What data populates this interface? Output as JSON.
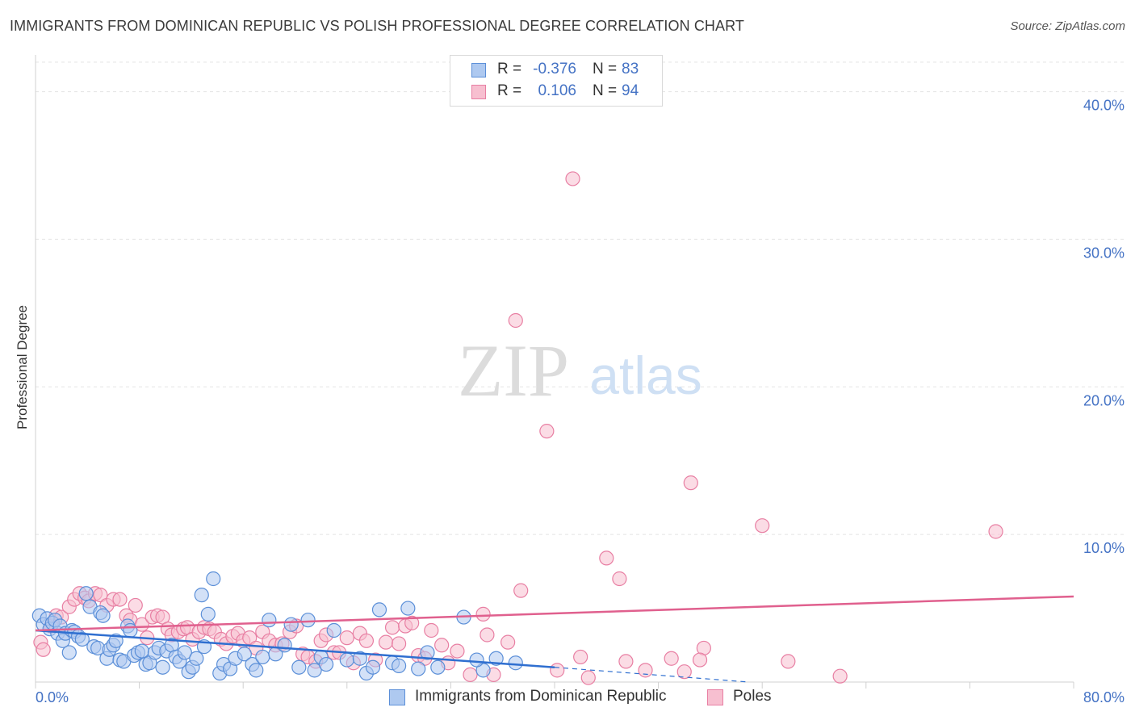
{
  "title": "IMMIGRANTS FROM DOMINICAN REPUBLIC VS POLISH PROFESSIONAL DEGREE CORRELATION CHART",
  "source": "Source: ZipAtlas.com",
  "watermark": {
    "zip": "ZIP",
    "atlas": "atlas"
  },
  "colors": {
    "blue_fill": "#aec9f0",
    "blue_stroke": "#5b8fd8",
    "blue_line": "#2f6fd0",
    "pink_fill": "#f7bfd0",
    "pink_stroke": "#e87fa3",
    "pink_line": "#e0608e",
    "tick_text": "#4472c4",
    "grid": "#e4e4e4"
  },
  "legend": {
    "blue": {
      "r_label": "R =",
      "r_value": "-0.376",
      "n_label": "N =",
      "n_value": "83"
    },
    "pink": {
      "r_label": "R =",
      "r_value": "0.106",
      "n_label": "N =",
      "n_value": "94"
    }
  },
  "chart_data": {
    "type": "scatter",
    "title": "IMMIGRANTS FROM DOMINICAN REPUBLIC VS POLISH PROFESSIONAL DEGREE CORRELATION CHART",
    "xlabel": "",
    "ylabel": "Professional Degree",
    "xlim": [
      0,
      80
    ],
    "ylim": [
      0,
      42
    ],
    "x_tick_labels": [
      "0.0%",
      "80.0%"
    ],
    "y_ticks": [
      10,
      20,
      30,
      40
    ],
    "y_tick_labels": [
      "10.0%",
      "20.0%",
      "30.0%",
      "40.0%"
    ],
    "grid": "horizontal dashed",
    "legend_position": "bottom-center",
    "series": [
      {
        "name": "Immigrants from Dominican Republic",
        "color": "#aec9f0",
        "trend": {
          "x": [
            0,
            40,
            55
          ],
          "y": [
            3.5,
            1.0,
            0.0
          ],
          "solid_until": 40
        },
        "points": [
          [
            0.3,
            4.5
          ],
          [
            0.6,
            3.9
          ],
          [
            0.9,
            4.3
          ],
          [
            1.1,
            3.6
          ],
          [
            1.3,
            4.0
          ],
          [
            1.5,
            4.2
          ],
          [
            1.7,
            3.3
          ],
          [
            1.9,
            3.8
          ],
          [
            2.1,
            2.8
          ],
          [
            2.3,
            3.3
          ],
          [
            2.6,
            2.0
          ],
          [
            2.8,
            3.5
          ],
          [
            3.0,
            3.4
          ],
          [
            3.3,
            3.1
          ],
          [
            3.6,
            2.9
          ],
          [
            3.9,
            6.0
          ],
          [
            4.2,
            5.1
          ],
          [
            4.5,
            2.4
          ],
          [
            4.8,
            2.3
          ],
          [
            5.0,
            4.7
          ],
          [
            5.2,
            4.5
          ],
          [
            5.5,
            1.6
          ],
          [
            5.7,
            2.2
          ],
          [
            6.0,
            2.5
          ],
          [
            6.2,
            2.8
          ],
          [
            6.5,
            1.5
          ],
          [
            6.8,
            1.4
          ],
          [
            7.1,
            3.8
          ],
          [
            7.3,
            3.5
          ],
          [
            7.6,
            1.8
          ],
          [
            7.9,
            2.0
          ],
          [
            8.2,
            2.1
          ],
          [
            8.5,
            1.2
          ],
          [
            8.8,
            1.3
          ],
          [
            9.2,
            2.0
          ],
          [
            9.5,
            2.3
          ],
          [
            9.8,
            1.0
          ],
          [
            10.1,
            2.1
          ],
          [
            10.5,
            2.5
          ],
          [
            10.8,
            1.7
          ],
          [
            11.1,
            1.4
          ],
          [
            11.5,
            2.0
          ],
          [
            11.8,
            0.7
          ],
          [
            12.1,
            1.0
          ],
          [
            12.4,
            1.6
          ],
          [
            12.8,
            5.9
          ],
          [
            13.0,
            2.4
          ],
          [
            13.3,
            4.6
          ],
          [
            13.7,
            7.0
          ],
          [
            14.2,
            0.6
          ],
          [
            14.5,
            1.2
          ],
          [
            15.0,
            0.9
          ],
          [
            15.4,
            1.6
          ],
          [
            16.1,
            1.9
          ],
          [
            16.7,
            1.2
          ],
          [
            17.0,
            0.8
          ],
          [
            17.5,
            1.7
          ],
          [
            18.0,
            4.2
          ],
          [
            18.5,
            1.9
          ],
          [
            19.2,
            2.5
          ],
          [
            19.7,
            3.9
          ],
          [
            20.3,
            1.0
          ],
          [
            21.0,
            4.2
          ],
          [
            21.5,
            0.8
          ],
          [
            22.0,
            1.7
          ],
          [
            22.4,
            1.2
          ],
          [
            23.0,
            3.5
          ],
          [
            24.0,
            1.5
          ],
          [
            25.0,
            1.6
          ],
          [
            25.5,
            0.6
          ],
          [
            26.0,
            1.0
          ],
          [
            26.5,
            4.9
          ],
          [
            27.5,
            1.3
          ],
          [
            28.0,
            1.1
          ],
          [
            28.7,
            5.0
          ],
          [
            29.5,
            0.9
          ],
          [
            30.2,
            2.0
          ],
          [
            31.0,
            1.0
          ],
          [
            33.0,
            4.4
          ],
          [
            34.5,
            0.8
          ],
          [
            34.0,
            1.5
          ],
          [
            35.5,
            1.6
          ],
          [
            37.0,
            1.3
          ]
        ]
      },
      {
        "name": "Poles",
        "color": "#f7bfd0",
        "trend": {
          "x": [
            0,
            80
          ],
          "y": [
            3.5,
            5.8
          ]
        },
        "points": [
          [
            0.4,
            2.7
          ],
          [
            0.6,
            2.2
          ],
          [
            1.2,
            3.8
          ],
          [
            1.6,
            4.5
          ],
          [
            2.0,
            4.4
          ],
          [
            2.6,
            5.1
          ],
          [
            3.0,
            5.6
          ],
          [
            3.4,
            6.0
          ],
          [
            3.8,
            5.7
          ],
          [
            4.1,
            5.5
          ],
          [
            4.6,
            6.0
          ],
          [
            5.0,
            5.9
          ],
          [
            5.5,
            5.2
          ],
          [
            6.0,
            5.6
          ],
          [
            6.5,
            5.6
          ],
          [
            7.0,
            4.5
          ],
          [
            7.3,
            4.2
          ],
          [
            7.7,
            5.2
          ],
          [
            8.2,
            3.9
          ],
          [
            8.6,
            3.0
          ],
          [
            9.0,
            4.4
          ],
          [
            9.4,
            4.5
          ],
          [
            9.8,
            4.4
          ],
          [
            10.2,
            3.6
          ],
          [
            10.5,
            3.2
          ],
          [
            11.0,
            3.4
          ],
          [
            11.4,
            3.6
          ],
          [
            11.7,
            3.7
          ],
          [
            12.1,
            2.9
          ],
          [
            12.6,
            3.4
          ],
          [
            13.0,
            3.7
          ],
          [
            13.4,
            3.6
          ],
          [
            13.8,
            3.4
          ],
          [
            14.3,
            2.9
          ],
          [
            14.7,
            2.6
          ],
          [
            15.2,
            3.1
          ],
          [
            15.6,
            3.3
          ],
          [
            16.0,
            2.8
          ],
          [
            16.5,
            3.0
          ],
          [
            17.0,
            2.3
          ],
          [
            17.5,
            3.4
          ],
          [
            18.0,
            2.8
          ],
          [
            18.5,
            2.5
          ],
          [
            19.0,
            2.6
          ],
          [
            19.6,
            3.4
          ],
          [
            20.1,
            3.8
          ],
          [
            20.6,
            1.9
          ],
          [
            21.0,
            1.7
          ],
          [
            21.6,
            1.4
          ],
          [
            22.0,
            2.8
          ],
          [
            22.4,
            3.2
          ],
          [
            23.0,
            2.0
          ],
          [
            23.4,
            2.0
          ],
          [
            24.0,
            3.0
          ],
          [
            24.5,
            1.3
          ],
          [
            25.0,
            3.3
          ],
          [
            25.5,
            2.8
          ],
          [
            26.2,
            1.5
          ],
          [
            27.0,
            2.7
          ],
          [
            27.5,
            3.7
          ],
          [
            28.0,
            2.6
          ],
          [
            28.5,
            3.8
          ],
          [
            29.0,
            4.0
          ],
          [
            29.5,
            1.8
          ],
          [
            30.0,
            1.6
          ],
          [
            30.5,
            3.5
          ],
          [
            31.3,
            2.5
          ],
          [
            31.8,
            1.3
          ],
          [
            32.5,
            2.1
          ],
          [
            33.5,
            0.5
          ],
          [
            34.5,
            4.6
          ],
          [
            34.8,
            3.2
          ],
          [
            35.3,
            0.5
          ],
          [
            36.4,
            2.7
          ],
          [
            37.4,
            6.2
          ],
          [
            37.0,
            24.5
          ],
          [
            39.4,
            17.0
          ],
          [
            40.2,
            0.8
          ],
          [
            41.4,
            34.1
          ],
          [
            42.0,
            1.7
          ],
          [
            42.6,
            0.3
          ],
          [
            44.0,
            8.4
          ],
          [
            45.0,
            7.0
          ],
          [
            45.5,
            1.4
          ],
          [
            47.0,
            0.8
          ],
          [
            49.0,
            1.6
          ],
          [
            50.0,
            0.7
          ],
          [
            50.5,
            13.5
          ],
          [
            51.5,
            2.3
          ],
          [
            51.2,
            1.5
          ],
          [
            56.0,
            10.6
          ],
          [
            58.0,
            1.4
          ],
          [
            62.0,
            0.4
          ],
          [
            74.0,
            10.2
          ]
        ]
      }
    ]
  }
}
